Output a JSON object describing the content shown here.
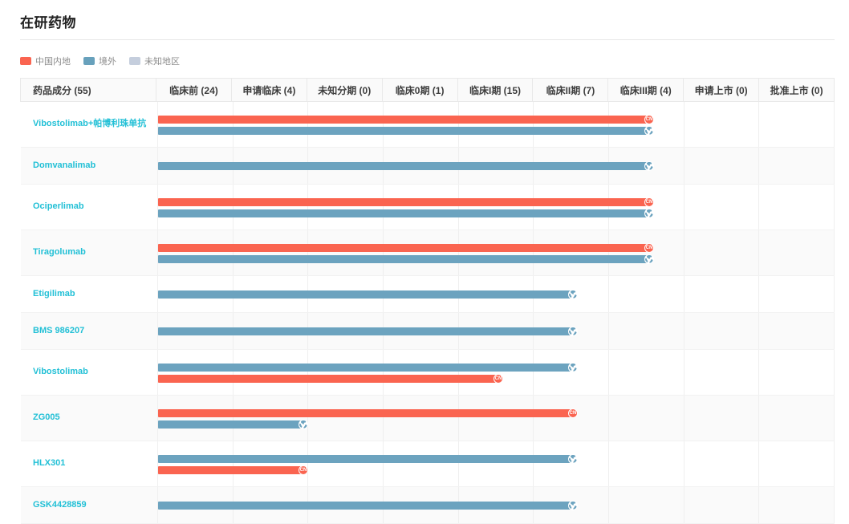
{
  "title": "在研药物",
  "legend": {
    "items": [
      {
        "label": "中国内地",
        "color": "#fa6450"
      },
      {
        "label": "境外",
        "color": "#68a1bc"
      },
      {
        "label": "未知地区",
        "color": "#c5cedd"
      }
    ]
  },
  "colors": {
    "cn_bar": "#fa6450",
    "overseas_bar": "#6ca3bf",
    "unknown_bar": "#c5cedd",
    "link": "#22c0d6",
    "header_bg": "#fafafa",
    "row_alt_bg": "#fafafa",
    "grid_line": "#efefef"
  },
  "chart_data": {
    "type": "table",
    "title": "在研药物",
    "legend_entries": [
      "中国内地",
      "境外",
      "未知地区"
    ],
    "columns": [
      "药品成分 (55)",
      "临床前 (24)",
      "申请临床 (4)",
      "未知分期 (0)",
      "临床0期 (1)",
      "临床I期 (15)",
      "临床II期 (7)",
      "临床III期 (4)",
      "申请上市 (0)",
      "批准上市 (0)"
    ],
    "phase_column_count": 9,
    "rows": [
      {
        "name": "Vibostolimab+帕博利珠单抗",
        "bars": [
          {
            "region": "中国内地",
            "badge": "CN",
            "phase": "临床III期",
            "end_frac": 0.725
          },
          {
            "region": "境外",
            "badge": "globe",
            "phase": "临床III期",
            "end_frac": 0.725
          }
        ]
      },
      {
        "name": "Domvanalimab",
        "bars": [
          {
            "region": "境外",
            "badge": "globe",
            "phase": "临床III期",
            "end_frac": 0.725
          }
        ]
      },
      {
        "name": "Ociperlimab",
        "bars": [
          {
            "region": "中国内地",
            "badge": "CN",
            "phase": "临床III期",
            "end_frac": 0.725
          },
          {
            "region": "境外",
            "badge": "globe",
            "phase": "临床III期",
            "end_frac": 0.725
          }
        ]
      },
      {
        "name": "Tiragolumab",
        "bars": [
          {
            "region": "中国内地",
            "badge": "CN",
            "phase": "临床III期",
            "end_frac": 0.725
          },
          {
            "region": "境外",
            "badge": "globe",
            "phase": "临床III期",
            "end_frac": 0.725
          }
        ]
      },
      {
        "name": "Etigilimab",
        "bars": [
          {
            "region": "境外",
            "badge": "globe",
            "phase": "临床II期",
            "end_frac": 0.613
          }
        ]
      },
      {
        "name": "BMS 986207",
        "bars": [
          {
            "region": "境外",
            "badge": "globe",
            "phase": "临床II期",
            "end_frac": 0.613
          }
        ]
      },
      {
        "name": "Vibostolimab",
        "bars": [
          {
            "region": "境外",
            "badge": "globe",
            "phase": "临床II期",
            "end_frac": 0.613
          },
          {
            "region": "中国内地",
            "badge": "CN",
            "phase": "临床I期",
            "end_frac": 0.502
          }
        ]
      },
      {
        "name": "ZG005",
        "bars": [
          {
            "region": "中国内地",
            "badge": "CN",
            "phase": "临床II期",
            "end_frac": 0.613
          },
          {
            "region": "境外",
            "badge": "globe",
            "phase": "申请临床",
            "end_frac": 0.214
          }
        ]
      },
      {
        "name": "HLX301",
        "bars": [
          {
            "region": "境外",
            "badge": "globe",
            "phase": "临床II期",
            "end_frac": 0.613
          },
          {
            "region": "中国内地",
            "badge": "CN",
            "phase": "申请临床",
            "end_frac": 0.214
          }
        ]
      },
      {
        "name": "GSK4428859",
        "bars": [
          {
            "region": "境外",
            "badge": "globe",
            "phase": "临床II期",
            "end_frac": 0.613
          }
        ]
      }
    ]
  }
}
